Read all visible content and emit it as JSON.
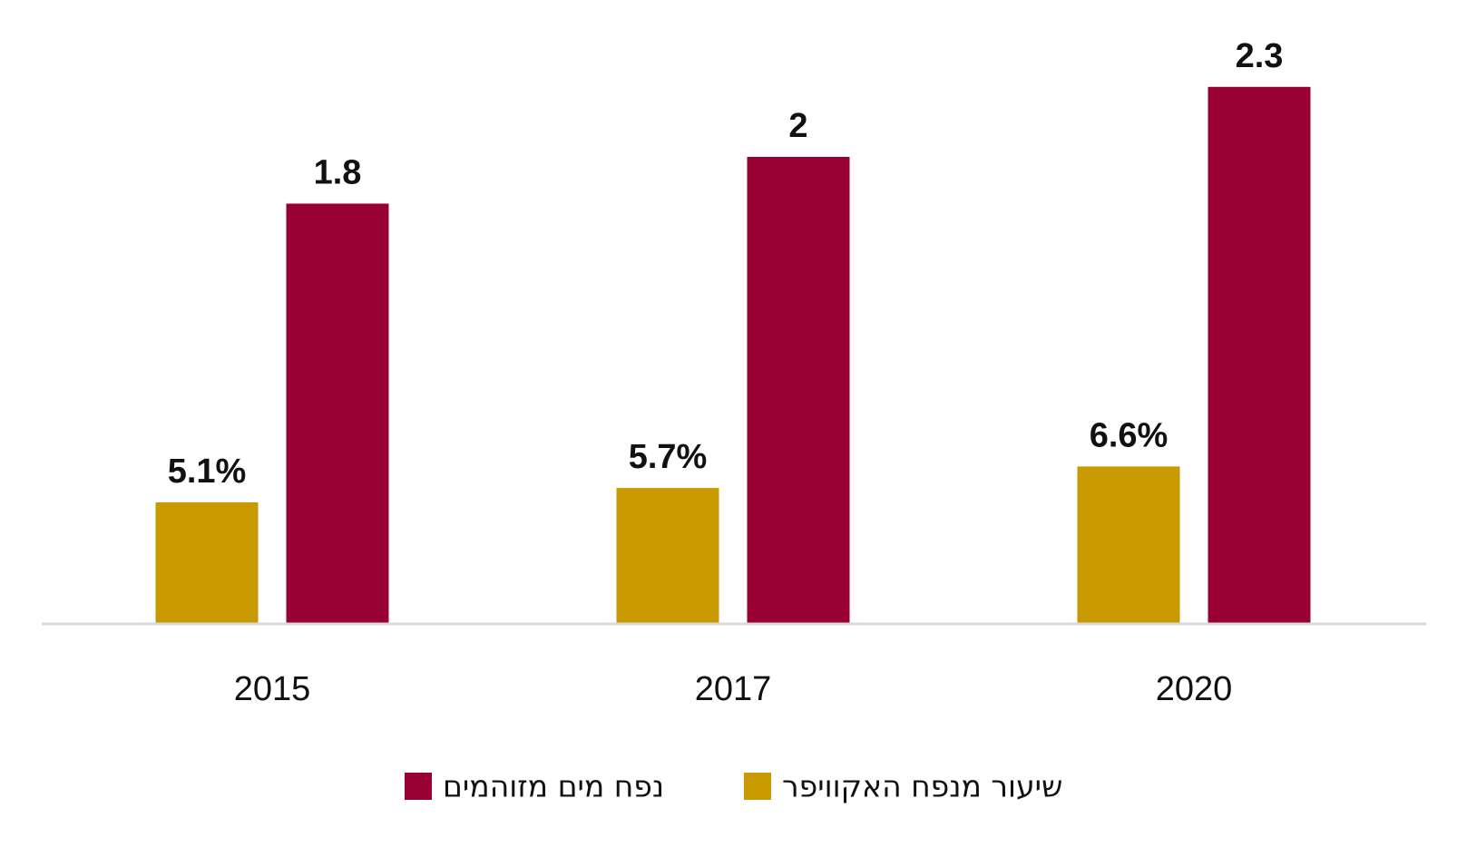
{
  "chart_data": {
    "type": "bar",
    "categories": [
      "2015",
      "2017",
      "2020"
    ],
    "series": [
      {
        "name": "שיעור מנפח האקוויפר",
        "values": [
          5.1,
          5.7,
          6.6
        ],
        "labels": [
          "5.1%",
          "5.7%",
          "6.6%"
        ],
        "color": "#c99a00"
      },
      {
        "name": "נפח מים מזוהמים",
        "values": [
          1.8,
          2,
          2.3
        ],
        "labels": [
          "1.8",
          "2",
          "2.3"
        ],
        "color": "#990033"
      }
    ],
    "grid": false,
    "legend_position": "bottom",
    "axis_color": "#d9d9d9"
  }
}
